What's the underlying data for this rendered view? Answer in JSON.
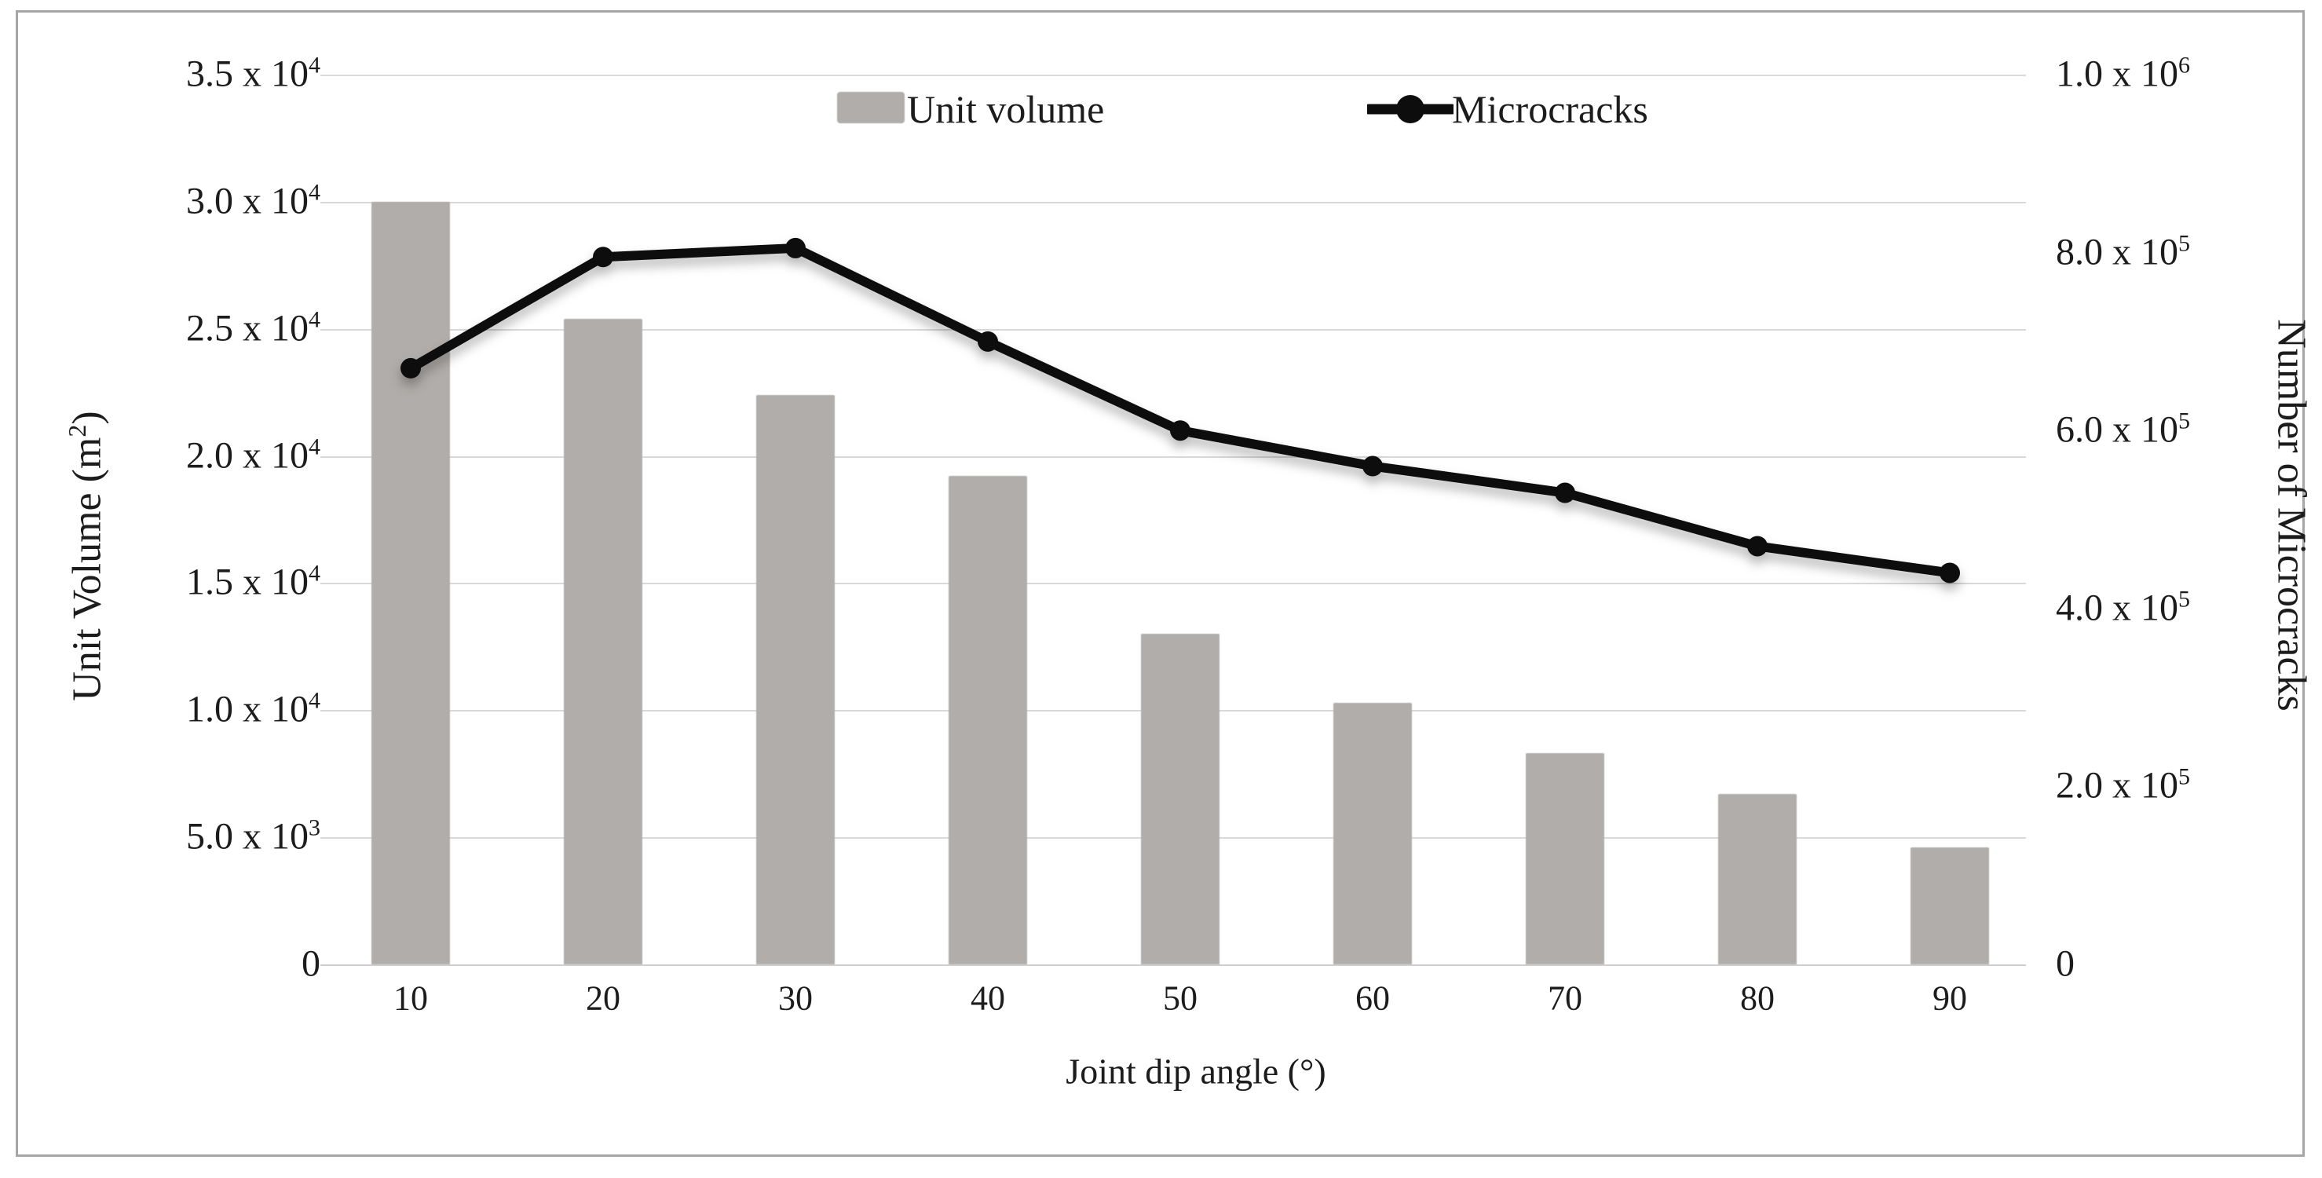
{
  "chart_data": {
    "type": "combo-bar-line-dual-axis",
    "categories": [
      10,
      20,
      30,
      40,
      50,
      60,
      70,
      80,
      90
    ],
    "series": [
      {
        "name": "Unit volume",
        "type": "bar",
        "axis": "left",
        "color": "#b1adaa",
        "values": [
          30000,
          25400,
          22400,
          19200,
          13000,
          10300,
          8300,
          6700,
          4600
        ]
      },
      {
        "name": "Microcracks",
        "type": "line",
        "axis": "right",
        "color": "#0d0d0d",
        "values": [
          670000,
          795000,
          805000,
          700000,
          600000,
          560000,
          530000,
          470000,
          440000
        ]
      }
    ],
    "x_axis": {
      "title": "Joint dip angle (°)",
      "tick_labels": [
        "10",
        "20",
        "30",
        "40",
        "50",
        "60",
        "70",
        "80",
        "90"
      ]
    },
    "left_axis": {
      "title_text": "Unit Volume (m",
      "title_sup": "2",
      "title_suffix": ")",
      "range": [
        0,
        35000
      ],
      "ticks": [
        {
          "v": 0,
          "text": "0",
          "sup": ""
        },
        {
          "v": 5000,
          "text": "5.0 x 10",
          "sup": "3"
        },
        {
          "v": 10000,
          "text": "1.0 x 10",
          "sup": "4"
        },
        {
          "v": 15000,
          "text": "1.5 x 10",
          "sup": "4"
        },
        {
          "v": 20000,
          "text": "2.0 x 10",
          "sup": "4"
        },
        {
          "v": 25000,
          "text": "2.5 x 10",
          "sup": "4"
        },
        {
          "v": 30000,
          "text": "3.0 x 10",
          "sup": "4"
        },
        {
          "v": 35000,
          "text": "3.5 x 10",
          "sup": "4"
        }
      ]
    },
    "right_axis": {
      "title": "Number of Microcracks",
      "range": [
        0,
        1000000
      ],
      "ticks": [
        {
          "v": 0,
          "text": "0",
          "sup": ""
        },
        {
          "v": 200000,
          "text": "2.0 x 10",
          "sup": "5"
        },
        {
          "v": 400000,
          "text": "4.0 x 10",
          "sup": "5"
        },
        {
          "v": 600000,
          "text": "6.0 x 10",
          "sup": "5"
        },
        {
          "v": 800000,
          "text": "8.0 x 10",
          "sup": "5"
        },
        {
          "v": 1000000,
          "text": "1.0 x 10",
          "sup": "6"
        }
      ]
    },
    "grid": true,
    "legend_position": "top-center",
    "colors": {
      "bar": "#b1adaa",
      "line": "#0d0d0d",
      "grid": "#d9d9d9",
      "frame": "#a6a6a6",
      "text": "#1c1c1c"
    }
  },
  "legend": {
    "unit_volume_label": "Unit volume",
    "microcracks_label": "Microcracks"
  }
}
